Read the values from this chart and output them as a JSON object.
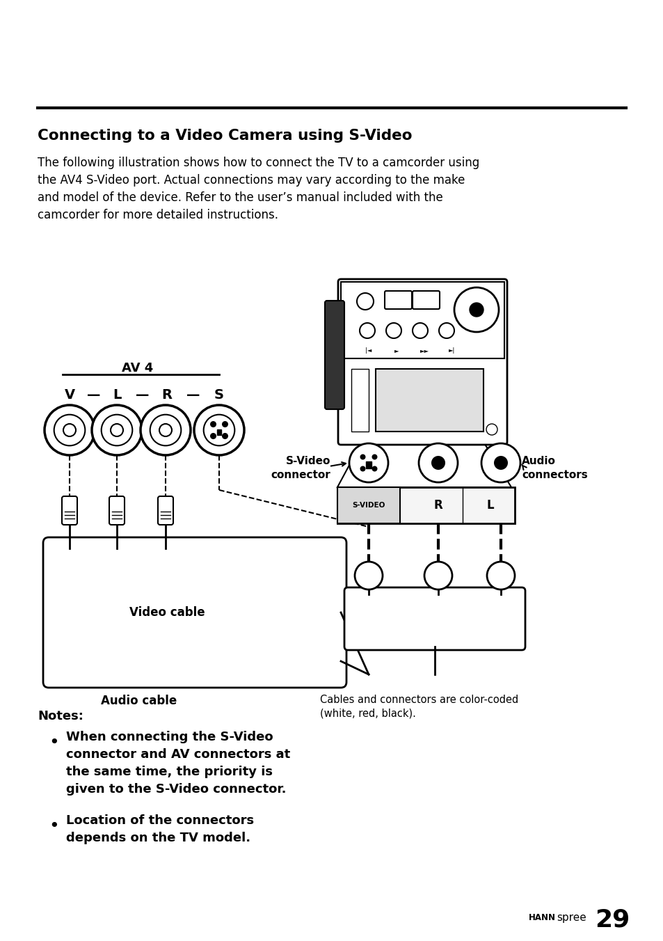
{
  "bg_color": "#ffffff",
  "title": "Connecting to a Video Camera using S-Video",
  "body_text": "The following illustration shows how to connect the TV to a camcorder using\nthe AV4 S-Video port. Actual connections may vary according to the make\nand model of the device. Refer to the user’s manual included with the\ncamcorder for more detailed instructions.",
  "notes_label": "Notes:",
  "bullet1": "When connecting the S-Video\nconnector and AV connectors at\nthe same time, the priority is\ngiven to the S-Video connector.",
  "bullet2": "Location of the connectors\ndepends on the TV model.",
  "color_note": "Cables and connectors are color-coded\n(white, red, black).",
  "video_cable_label": "Video cable",
  "audio_cable_label": "Audio cable",
  "av4_label": "AV 4",
  "svideo_connector_label": "S-Video\nconnector",
  "audio_connectors_label": "Audio\nconnectors",
  "svideo_tag": "S-VIDEO",
  "r_tag": "R",
  "l_tag": "L"
}
